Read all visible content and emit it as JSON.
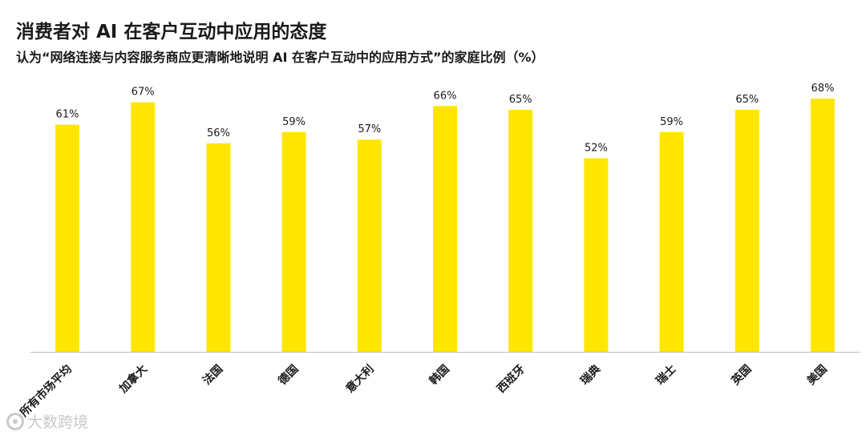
{
  "chart_data": {
    "type": "bar",
    "title": "消费者对 AI 在客户互动中应用的态度",
    "subtitle": "认为“网络连接与内容服务商应更清晰地说明 AI 在客户互动中的应用方式”的家庭比例（%）",
    "categories": [
      "所有市场平均",
      "加拿大",
      "法国",
      "德国",
      "意大利",
      "韩国",
      "西班牙",
      "瑞典",
      "瑞士",
      "英国",
      "美国"
    ],
    "values": [
      61,
      67,
      56,
      59,
      57,
      66,
      65,
      52,
      59,
      65,
      68
    ],
    "value_labels": [
      "61%",
      "67%",
      "56%",
      "59%",
      "57%",
      "66%",
      "65%",
      "52%",
      "59%",
      "65%",
      "68%"
    ],
    "ylim": [
      0,
      68
    ],
    "bar_color": "#FFE600",
    "axis_color": "#BFBFBF",
    "grid": false
  },
  "watermark": {
    "text": "大数跨境",
    "icon": "logo-circle-icon"
  }
}
